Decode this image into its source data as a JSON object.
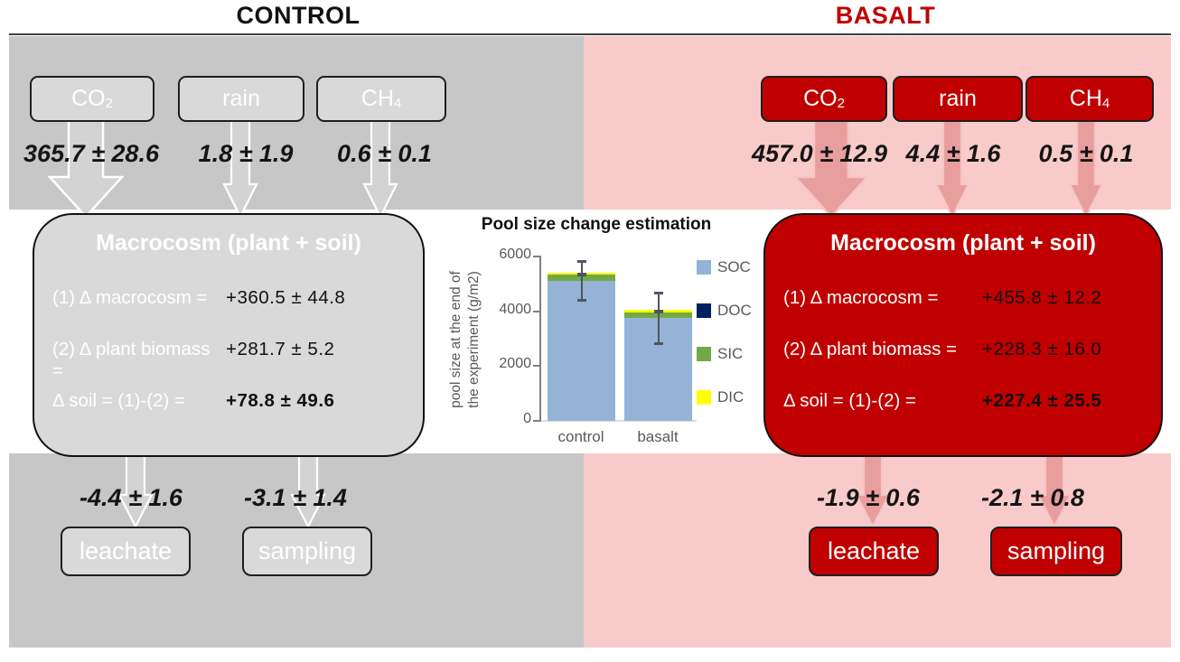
{
  "header": {
    "control_title": "CONTROL",
    "basalt_title": "BASALT"
  },
  "colors": {
    "gray_panel": "#C7C7C7",
    "light_box": "#D9D9D9",
    "pink_panel": "#F8CBCA",
    "dark_red": "#C00000",
    "basalt_title": "#C00000"
  },
  "control": {
    "gases": [
      {
        "main": "CO",
        "sub": "2",
        "flux": "365.7 ± 28.6"
      },
      {
        "main": "rain",
        "sub": "",
        "flux": "1.8 ± 1.9"
      },
      {
        "main": "CH",
        "sub": "4",
        "flux": "0.6 ± 0.1"
      }
    ],
    "macrocosm": {
      "title": "Macrocosm (plant + soil)",
      "rows": [
        {
          "label": "(1) Δ macrocosm =",
          "value": "+360.5 ± 44.8"
        },
        {
          "label": "(2) Δ plant biomass =",
          "value": "+281.7 ± 5.2"
        },
        {
          "label": "Δ soil = (1)-(2) =",
          "value": "+78.8 ± 49.6"
        }
      ]
    },
    "outputs": [
      {
        "flux": "-4.4 ± 1.6",
        "label": "leachate"
      },
      {
        "flux": "-3.1 ± 1.4",
        "label": "sampling"
      }
    ]
  },
  "basalt": {
    "gases": [
      {
        "main": "CO",
        "sub": "2",
        "flux": "457.0 ± 12.9"
      },
      {
        "main": "rain",
        "sub": "",
        "flux": "4.4 ± 1.6"
      },
      {
        "main": "CH",
        "sub": "4",
        "flux": "0.5 ± 0.1"
      }
    ],
    "macrocosm": {
      "title": "Macrocosm (plant + soil)",
      "rows": [
        {
          "label": "(1) Δ macrocosm =",
          "value": "+455.8 ± 12.2"
        },
        {
          "label": "(2) Δ plant biomass =",
          "value": "+228.3 ± 16.0"
        },
        {
          "label": "Δ soil = (1)-(2) =",
          "value": "+227.4 ± 25.5"
        }
      ]
    },
    "outputs": [
      {
        "flux": "-1.9 ± 0.6",
        "label": "leachate"
      },
      {
        "flux": "-2.1 ± 0.8",
        "label": "sampling"
      }
    ]
  },
  "chart_data": {
    "type": "bar",
    "stacked": true,
    "title": "Pool size change estimation",
    "ylabel_lines": [
      "pool size at the end of",
      "the experiment (g/m2)"
    ],
    "categories": [
      "control",
      "basalt"
    ],
    "series": [
      {
        "name": "SOC",
        "color": "#95B3D7",
        "values": [
          5100,
          3750
        ]
      },
      {
        "name": "DOC",
        "color": "#002060",
        "values": [
          0,
          0
        ]
      },
      {
        "name": "SIC",
        "color": "#73A945",
        "values": [
          250,
          220
        ]
      },
      {
        "name": "DIC",
        "color": "#FFFF00",
        "values": [
          50,
          80
        ]
      }
    ],
    "error_bars": {
      "low": [
        4430,
        2830
      ],
      "high": [
        5850,
        4670
      ],
      "mid": [
        5340,
        3990
      ]
    },
    "ylim": [
      0,
      6000
    ],
    "yticks": [
      0,
      2000,
      4000,
      6000
    ],
    "ytick_labels": [
      "0",
      "2000",
      "4000",
      "6000"
    ],
    "legend_position": "right",
    "grid": false,
    "text_color": "#595959",
    "error_color": "#4F5560"
  }
}
